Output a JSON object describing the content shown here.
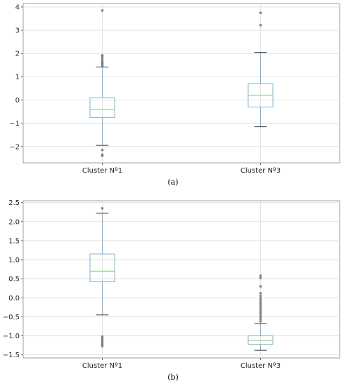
{
  "chart_data": [
    {
      "type": "box",
      "caption": "(a)",
      "categories": [
        "Cluster Nº1",
        "Cluster Nº3"
      ],
      "ylim": [
        -2.7,
        4.15
      ],
      "yticks": [
        -2,
        -1,
        0,
        1,
        2,
        3,
        4
      ],
      "ytick_labels": [
        "−2",
        "−1",
        "0",
        "1",
        "2",
        "3",
        "4"
      ],
      "grid": true,
      "boxes": [
        {
          "name": "Cluster Nº1",
          "whisker_low": -1.95,
          "q1": -0.75,
          "median": -0.4,
          "q3": 0.1,
          "whisker_high": 1.42,
          "outliers": [
            3.85,
            1.92,
            1.85,
            1.75,
            1.65,
            1.58,
            1.52,
            1.47,
            -2.15,
            -2.35,
            -2.4
          ]
        },
        {
          "name": "Cluster Nº3",
          "whisker_low": -1.15,
          "q1": -0.3,
          "median": 0.2,
          "q3": 0.7,
          "whisker_high": 2.05,
          "outliers": [
            3.75,
            3.22
          ]
        }
      ],
      "colors": {
        "box": "#7fb2d9",
        "median": "#8fd48f",
        "whisker": "#7fb2d9",
        "cap": "#333333",
        "outlier": "#888888"
      }
    },
    {
      "type": "box",
      "caption": "(b)",
      "categories": [
        "Cluster Nº1",
        "Cluster Nº3"
      ],
      "ylim": [
        -1.58,
        2.55
      ],
      "yticks": [
        -1.5,
        -1.0,
        -0.5,
        0.0,
        0.5,
        1.0,
        1.5,
        2.0,
        2.5
      ],
      "ytick_labels": [
        "−1.5",
        "−1.0",
        "−0.5",
        "0.0",
        "0.5",
        "1.0",
        "1.5",
        "2.0",
        "2.5"
      ],
      "grid": true,
      "boxes": [
        {
          "name": "Cluster Nº1",
          "whisker_low": -0.45,
          "q1": 0.42,
          "median": 0.7,
          "q3": 1.15,
          "whisker_high": 2.22,
          "outliers": [
            2.35,
            -1.02,
            -1.07,
            -1.12,
            -1.17,
            -1.22,
            -1.27
          ]
        },
        {
          "name": "Cluster Nº3",
          "whisker_low": -1.38,
          "q1": -1.22,
          "median": -1.12,
          "q3": -1.0,
          "whisker_high": -0.68,
          "outliers": [
            0.58,
            0.52,
            0.3,
            0.12,
            0.05,
            -0.02,
            -0.08,
            -0.14,
            -0.2,
            -0.26,
            -0.32,
            -0.38,
            -0.44,
            -0.5,
            -0.56,
            -0.62
          ]
        }
      ],
      "colors": {
        "box": "#7fb2d9",
        "median": "#8fd48f",
        "whisker": "#7fb2d9",
        "cap": "#333333",
        "outlier": "#888888"
      }
    }
  ]
}
